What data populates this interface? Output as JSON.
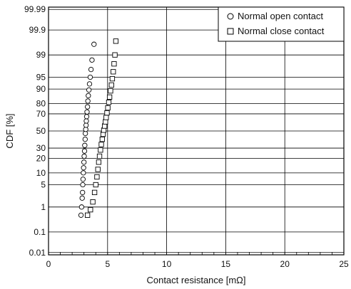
{
  "chart_data": {
    "type": "scatter",
    "xlabel": "Contact resistance [mΩ]",
    "ylabel": "CDF  [%]",
    "xlim": [
      0,
      25
    ],
    "y_scale": "normal-probability",
    "ylim": [
      0.01,
      99.99
    ],
    "x_ticks": [
      0,
      5,
      10,
      15,
      20,
      25
    ],
    "x_tick_labels": [
      "0",
      "5",
      "10",
      "15",
      "20",
      "25"
    ],
    "y_ticks": [
      0.01,
      0.1,
      1,
      5,
      10,
      20,
      30,
      50,
      70,
      80,
      90,
      95,
      99,
      99.9,
      99.99
    ],
    "y_tick_labels": [
      "0.01",
      "0.1",
      "1",
      "5",
      "10",
      "20",
      "30",
      "50",
      "70",
      "80",
      "90",
      "95",
      "99",
      "99.9",
      "99.99"
    ],
    "grid": true,
    "legend_position": "top-right",
    "series": [
      {
        "name": "Normal open contact",
        "marker": "circle",
        "x": [
          2.75,
          2.8,
          2.85,
          2.88,
          2.9,
          2.92,
          2.95,
          2.97,
          3.0,
          3.02,
          3.05,
          3.07,
          3.1,
          3.12,
          3.15,
          3.18,
          3.2,
          3.23,
          3.26,
          3.3,
          3.33,
          3.37,
          3.42,
          3.47,
          3.53,
          3.6,
          3.68,
          3.85
        ],
        "y": [
          0.5,
          1,
          2,
          3,
          5,
          7,
          10,
          13,
          17,
          22,
          27,
          33,
          40,
          47,
          52,
          57,
          62,
          67,
          72,
          77,
          82,
          86,
          89.5,
          92.5,
          95,
          97,
          98.5,
          99.6
        ]
      },
      {
        "name": "Normal close contact",
        "marker": "square",
        "x": [
          3.3,
          3.55,
          3.75,
          3.9,
          4.0,
          4.1,
          4.18,
          4.25,
          4.32,
          4.4,
          4.47,
          4.55,
          4.62,
          4.68,
          4.75,
          4.82,
          4.88,
          4.95,
          5.02,
          5.1,
          5.17,
          5.25,
          5.33,
          5.4,
          5.48,
          5.55,
          5.62,
          5.7
        ],
        "y": [
          0.5,
          0.8,
          1.5,
          3,
          5,
          8,
          12,
          17,
          22,
          28,
          34,
          40,
          46,
          51,
          56,
          61,
          66,
          71,
          76,
          81,
          85,
          89,
          92,
          94.5,
          96.5,
          98,
          99,
          99.7
        ]
      }
    ]
  }
}
